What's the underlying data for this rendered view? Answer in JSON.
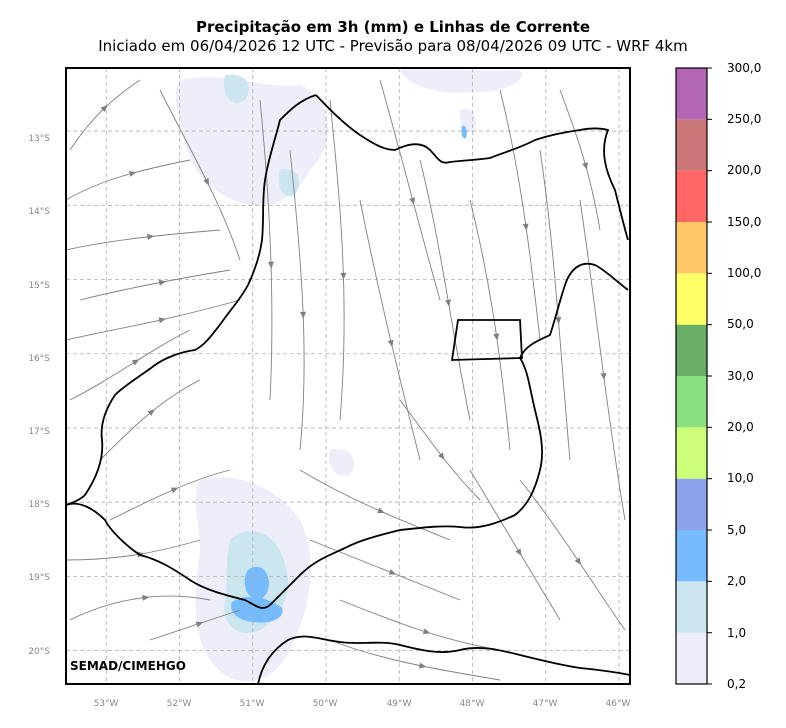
{
  "title": "Precipitação em 3h (mm) e Linhas de Corrente",
  "subtitle": "Iniciado em 06/04/2026 12 UTC - Previsão para 08/04/2026 09 UTC - WRF 4km",
  "credit": "SEMAD/CIMEHGO",
  "lat_labels": [
    "13°S",
    "14°S",
    "15°S",
    "16°S",
    "17°S",
    "18°S",
    "19°S",
    "20°S"
  ],
  "lon_labels": [
    "53°W",
    "52°W",
    "51°W",
    "50°W",
    "49°W",
    "48°W",
    "47°W",
    "46°W"
  ],
  "extent": {
    "lon_min": -53.55,
    "lon_max": -45.85,
    "lat_min": -20.45,
    "lat_max": -12.15
  },
  "colorbar": {
    "ticks": [
      "0,2",
      "1,0",
      "2,0",
      "5,0",
      "10,0",
      "20,0",
      "30,0",
      "50,0",
      "100,0",
      "150,0",
      "200,0",
      "250,0",
      "300,0"
    ],
    "colors": [
      "#eeeefa",
      "#cce6ef",
      "#76bbff",
      "#8ca3eb",
      "#ccff77",
      "#88e080",
      "#6aad66",
      "#ffff66",
      "#ffc866",
      "#ff6666",
      "#cc7777",
      "#b366b3"
    ]
  },
  "colors": {
    "border": "#000000",
    "streamline": "#808080",
    "grid": "#b0b0b0",
    "rain_light": "#eeeefa",
    "rain_cyan": "#cce6ef",
    "rain_blue": "#76bbff"
  },
  "icons": {
    "streamline_arrow": "filled-triangle"
  }
}
